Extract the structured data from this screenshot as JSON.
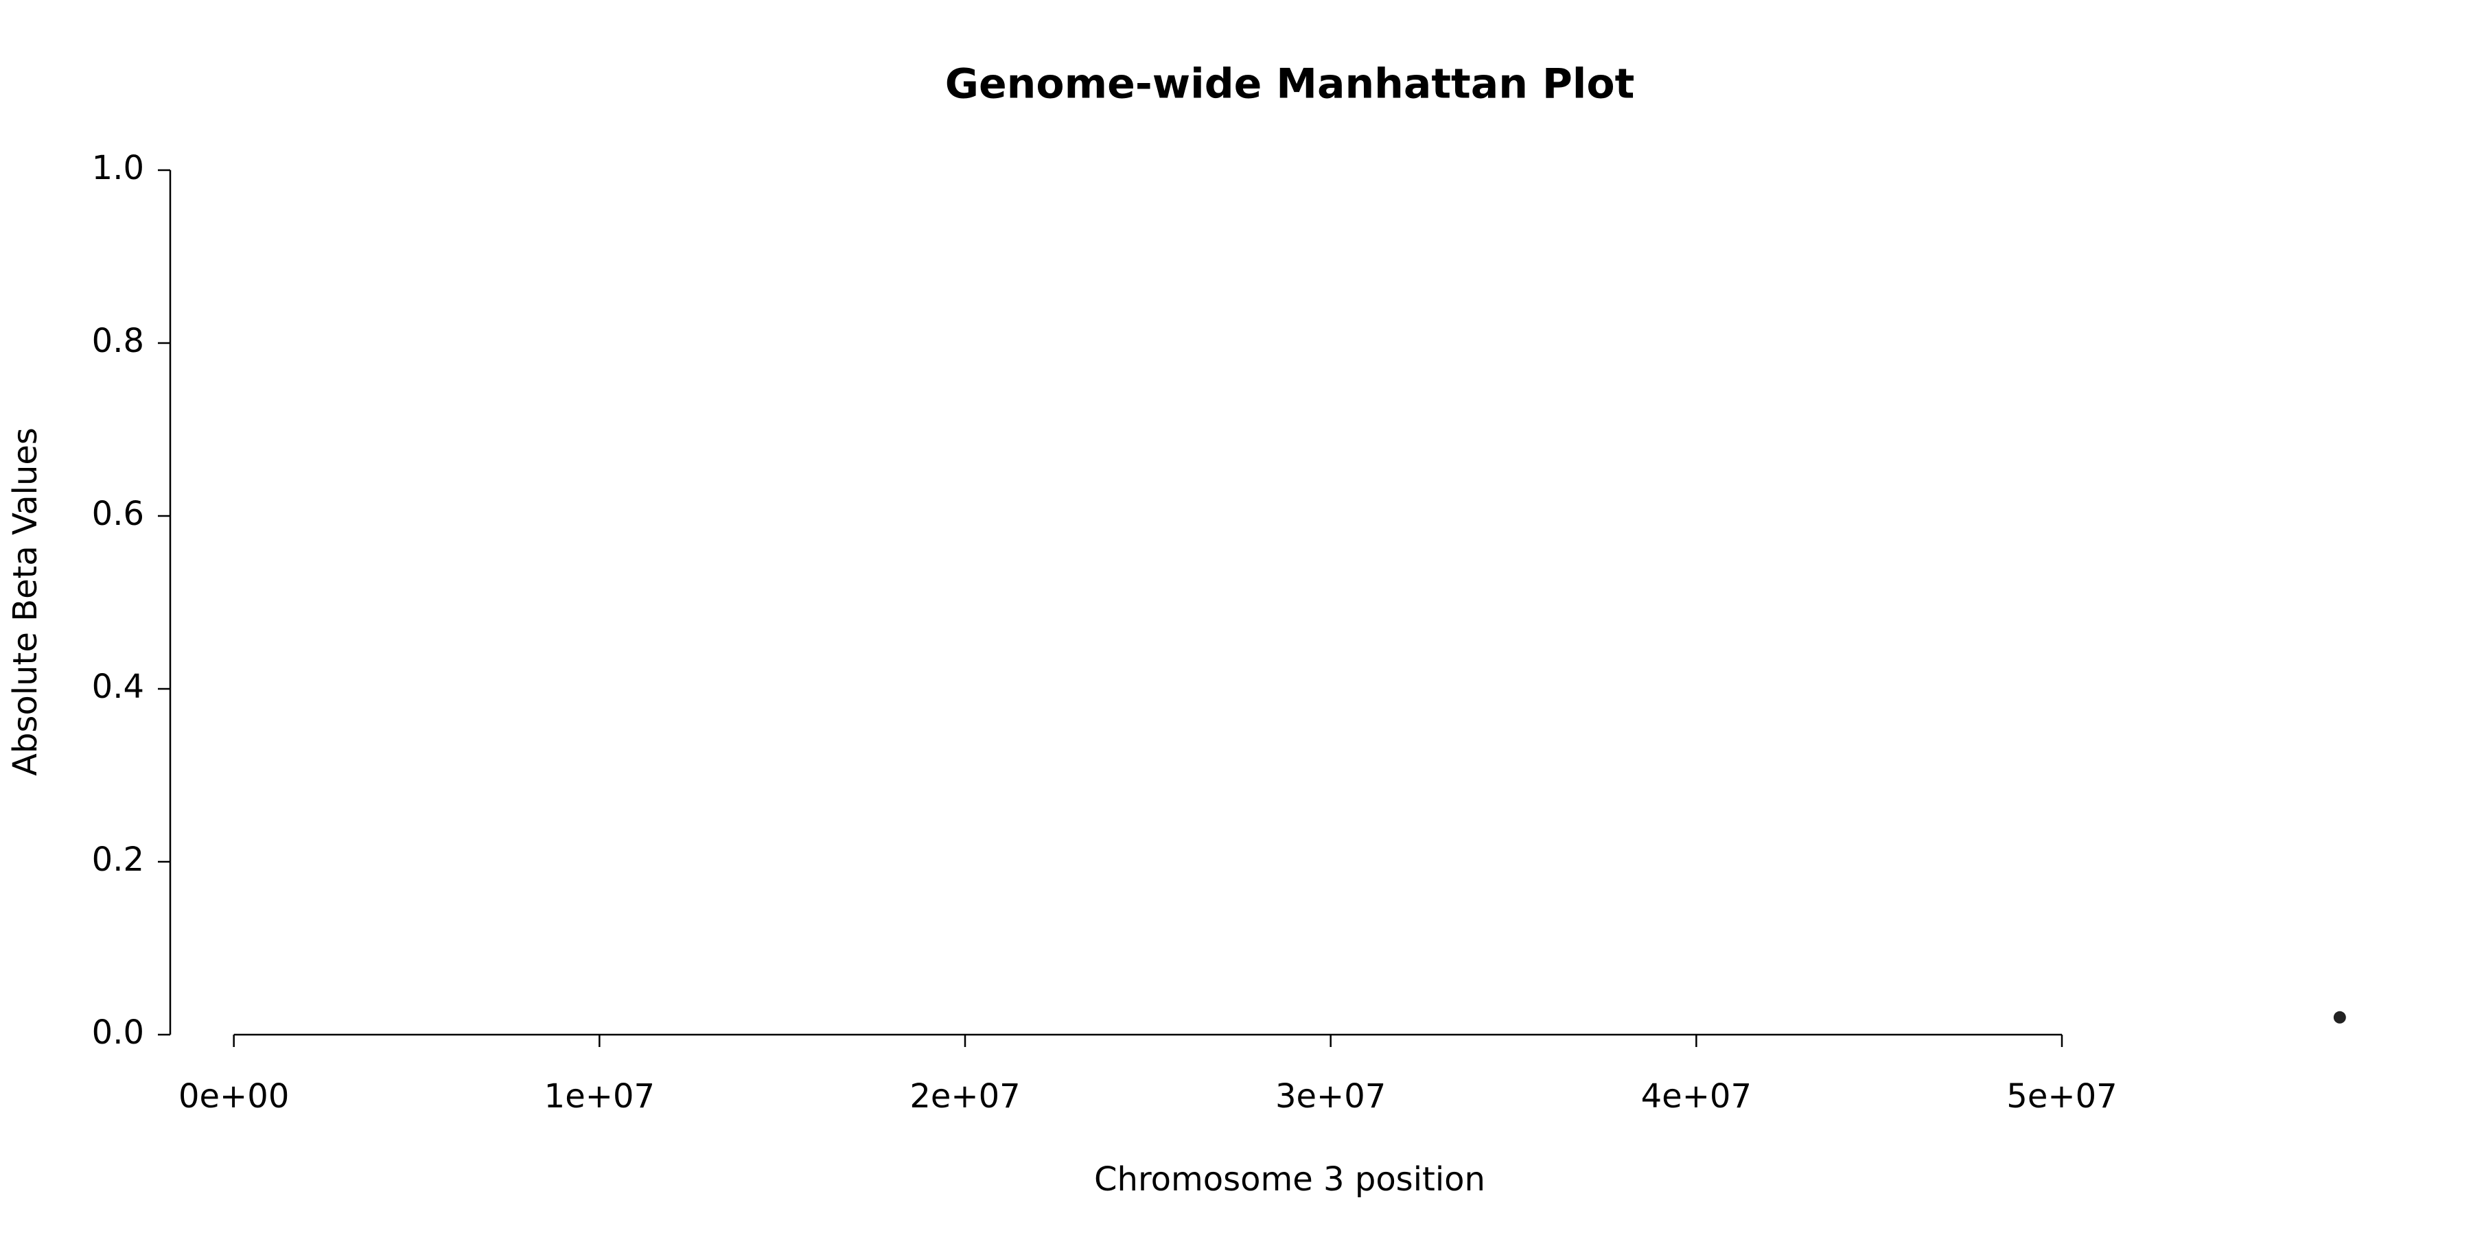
{
  "chart_data": {
    "type": "scatter",
    "title": "Genome-wide Manhattan Plot",
    "x_label": "Chromosome 3 position",
    "y_label": "Absolute Beta Values",
    "x": [
      57600000
    ],
    "values": [
      0.02
    ],
    "color": "#222222",
    "xlim": [
      -1740000,
      59800000
    ],
    "ylim": [
      0,
      1
    ],
    "xticks": [
      {
        "value": 0,
        "label": "0e+00"
      },
      {
        "value": 10000000,
        "label": "1e+07"
      },
      {
        "value": 20000000,
        "label": "2e+07"
      },
      {
        "value": 30000000,
        "label": "3e+07"
      },
      {
        "value": 40000000,
        "label": "4e+07"
      },
      {
        "value": 50000000,
        "label": "5e+07"
      }
    ],
    "yticks": [
      {
        "value": 0,
        "label": "0.0"
      },
      0.2,
      0.4,
      0.6,
      0.8,
      {
        "value": 1,
        "label": "1.0"
      }
    ],
    "grid": false
  }
}
